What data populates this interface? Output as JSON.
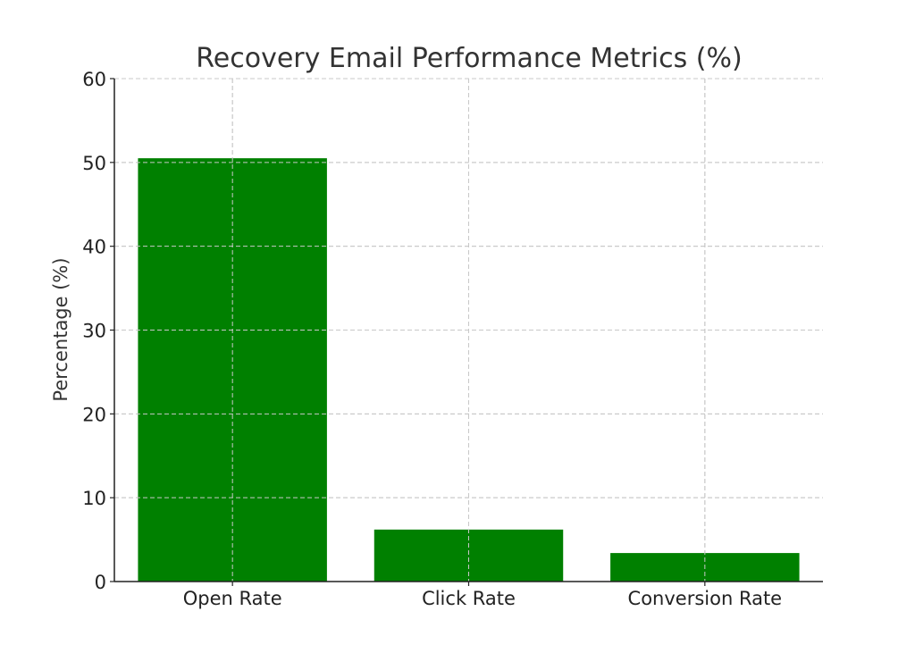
{
  "chart_data": {
    "type": "bar",
    "title": "Recovery Email Performance Metrics (%)",
    "xlabel": "",
    "ylabel": "Percentage (%)",
    "categories": [
      "Open Rate",
      "Click Rate",
      "Conversion Rate"
    ],
    "values": [
      50.5,
      6.2,
      3.4
    ],
    "ylim": [
      0,
      60
    ],
    "yticks": [
      "0",
      "10",
      "20",
      "30",
      "40",
      "50",
      "60"
    ],
    "grid": true,
    "bar_color": "#008000",
    "legend": "none"
  }
}
